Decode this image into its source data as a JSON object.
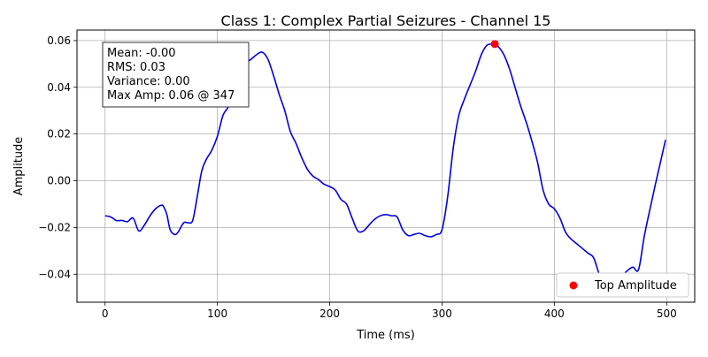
{
  "chart_data": {
    "type": "line",
    "title": "Class 1: Complex Partial Seizures - Channel 15",
    "xlabel": "Time (ms)",
    "ylabel": "Amplitude",
    "xlim": [
      -25,
      525
    ],
    "ylim": [
      -0.052,
      0.0645
    ],
    "x_ticks": [
      0,
      100,
      200,
      300,
      400,
      500
    ],
    "y_ticks": [
      -0.04,
      -0.02,
      0.0,
      0.02,
      0.04,
      0.06
    ],
    "x_tick_labels": [
      "0",
      "100",
      "200",
      "300",
      "400",
      "500"
    ],
    "y_tick_labels": [
      "−0.04",
      "−0.02",
      "0.00",
      "0.02",
      "0.04",
      "0.06"
    ],
    "grid": true,
    "line_color": "#0000dd",
    "series": [
      {
        "x": [
          0,
          5,
          10,
          15,
          20,
          25,
          30,
          35,
          40,
          45,
          50,
          52,
          55,
          58,
          62,
          65,
          70,
          74,
          78,
          82,
          86,
          90,
          95,
          100,
          105,
          110,
          115,
          120,
          125,
          130,
          135,
          140,
          145,
          150,
          155,
          160,
          165,
          170,
          175,
          180,
          185,
          190,
          195,
          200,
          205,
          210,
          215,
          220,
          225,
          230,
          235,
          240,
          245,
          250,
          255,
          260,
          265,
          270,
          275,
          280,
          285,
          290,
          295,
          300,
          305,
          310,
          315,
          320,
          325,
          330,
          335,
          340,
          345,
          347,
          350,
          355,
          360,
          365,
          370,
          375,
          380,
          385,
          390,
          395,
          400,
          405,
          410,
          415,
          420,
          425,
          430,
          435,
          440,
          445,
          450,
          455,
          460,
          465,
          470,
          475,
          480,
          485,
          490,
          495,
          499
        ],
        "y": [
          -0.015,
          -0.0155,
          -0.017,
          -0.017,
          -0.0175,
          -0.016,
          -0.0215,
          -0.019,
          -0.015,
          -0.012,
          -0.0105,
          -0.011,
          -0.0145,
          -0.021,
          -0.023,
          -0.022,
          -0.018,
          -0.018,
          -0.017,
          -0.007,
          0.004,
          0.009,
          0.013,
          0.019,
          0.028,
          0.032,
          0.041,
          0.045,
          0.05,
          0.052,
          0.054,
          0.055,
          0.052,
          0.045,
          0.037,
          0.03,
          0.021,
          0.016,
          0.01,
          0.005,
          0.002,
          0.0005,
          -0.0015,
          -0.0025,
          -0.004,
          -0.008,
          -0.01,
          -0.016,
          -0.0215,
          -0.0215,
          -0.019,
          -0.0165,
          -0.015,
          -0.0145,
          -0.015,
          -0.0155,
          -0.021,
          -0.0235,
          -0.023,
          -0.0225,
          -0.0235,
          -0.024,
          -0.023,
          -0.021,
          -0.007,
          0.014,
          0.028,
          0.035,
          0.041,
          0.047,
          0.054,
          0.058,
          0.0585,
          0.0585,
          0.0575,
          0.054,
          0.048,
          0.04,
          0.032,
          0.025,
          0.017,
          0.008,
          -0.004,
          -0.01,
          -0.012,
          -0.016,
          -0.022,
          -0.025,
          -0.027,
          -0.029,
          -0.031,
          -0.033,
          -0.04,
          -0.044,
          -0.045,
          -0.043,
          -0.041,
          -0.0385,
          -0.037,
          -0.038,
          -0.024,
          -0.0125,
          -0.0015,
          0.009,
          0.0175
        ]
      }
    ],
    "highlight": {
      "x": 347,
      "y": 0.0585,
      "color": "#ff0000"
    },
    "stats_box": {
      "lines": [
        "Mean: -0.00",
        "RMS: 0.03",
        "Variance: 0.00",
        "Max Amp: 0.06 @ 347"
      ]
    },
    "legend": {
      "position": "bottom-right",
      "entries": [
        "Top Amplitude"
      ]
    }
  }
}
